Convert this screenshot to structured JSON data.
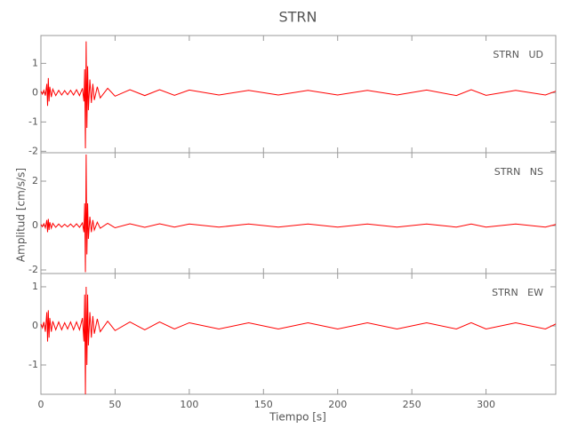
{
  "title": "STRN",
  "xlabel": "Tiempo [s]",
  "ylabel": "Amplitud [cm/s/s]",
  "chart_data": [
    {
      "type": "line",
      "label": "STRN   UD",
      "x": [
        0,
        1,
        2,
        3,
        4,
        4.5,
        5,
        5.5,
        6,
        7,
        8,
        10,
        12,
        14,
        16,
        18,
        20,
        22,
        24,
        26,
        28,
        29,
        29.5,
        30,
        30.5,
        31,
        31.5,
        32,
        33,
        34,
        35,
        36,
        38,
        40,
        45,
        50,
        60,
        70,
        80,
        90,
        100,
        120,
        140,
        160,
        180,
        200,
        220,
        240,
        260,
        280,
        290,
        300,
        320,
        340,
        347
      ],
      "series": [
        {
          "color": "#ff0000",
          "values": [
            0.05,
            -0.05,
            0.08,
            -0.1,
            0.3,
            -0.45,
            0.5,
            -0.3,
            0.2,
            -0.15,
            0.12,
            -0.1,
            0.08,
            -0.08,
            0.07,
            -0.07,
            0.08,
            -0.08,
            0.1,
            -0.1,
            0.15,
            -0.3,
            0.8,
            -1.9,
            1.75,
            -1.2,
            0.9,
            -0.6,
            0.45,
            -0.35,
            0.3,
            -0.25,
            0.2,
            -0.18,
            0.15,
            -0.12,
            0.1,
            -0.1,
            0.1,
            -0.09,
            0.09,
            -0.08,
            0.08,
            -0.08,
            0.08,
            -0.08,
            0.08,
            -0.08,
            0.09,
            -0.1,
            0.1,
            -0.09,
            0.08,
            -0.08,
            0.05
          ]
        }
      ],
      "xlim": [
        0,
        347
      ],
      "xticks": [
        0,
        50,
        100,
        150,
        200,
        250,
        300
      ],
      "ylim": [
        -2.05,
        1.95
      ],
      "yticks": [
        -2,
        -1,
        0,
        1
      ]
    },
    {
      "type": "line",
      "label": "STRN   NS",
      "x": [
        0,
        1,
        2,
        3,
        4,
        4.5,
        5,
        5.5,
        6,
        7,
        8,
        10,
        12,
        14,
        16,
        18,
        20,
        22,
        24,
        26,
        28,
        29,
        29.5,
        30,
        30.5,
        31,
        31.5,
        32,
        33,
        34,
        35,
        36,
        38,
        40,
        45,
        50,
        60,
        70,
        80,
        90,
        100,
        120,
        140,
        160,
        180,
        200,
        220,
        240,
        260,
        280,
        290,
        300,
        320,
        340,
        347
      ],
      "series": [
        {
          "color": "#ff0000",
          "values": [
            0.05,
            -0.05,
            0.08,
            -0.1,
            0.25,
            -0.3,
            0.3,
            -0.2,
            0.15,
            -0.12,
            0.1,
            -0.08,
            0.07,
            -0.07,
            0.06,
            -0.06,
            0.07,
            -0.07,
            0.08,
            -0.08,
            0.12,
            -0.3,
            1.0,
            -2.1,
            3.2,
            -1.3,
            1.0,
            -0.6,
            0.4,
            -0.3,
            0.25,
            -0.2,
            0.15,
            -0.12,
            0.1,
            -0.1,
            0.08,
            -0.08,
            0.08,
            -0.07,
            0.07,
            -0.07,
            0.07,
            -0.07,
            0.07,
            -0.07,
            0.07,
            -0.07,
            0.07,
            -0.07,
            0.07,
            -0.07,
            0.07,
            -0.07,
            0.05
          ]
        }
      ],
      "xlim": [
        0,
        347
      ],
      "xticks": [
        0,
        50,
        100,
        150,
        200,
        250,
        300
      ],
      "ylim": [
        -2.16,
        3.28
      ],
      "yticks": [
        -2,
        0,
        2
      ]
    },
    {
      "type": "line",
      "label": "STRN   EW",
      "x": [
        0,
        1,
        2,
        3,
        4,
        4.5,
        5,
        5.5,
        6,
        7,
        8,
        10,
        12,
        14,
        16,
        18,
        20,
        22,
        24,
        26,
        28,
        29,
        29.5,
        30,
        30.5,
        31,
        31.5,
        32,
        33,
        34,
        35,
        36,
        38,
        40,
        45,
        50,
        60,
        70,
        80,
        90,
        100,
        120,
        140,
        160,
        180,
        200,
        220,
        240,
        260,
        280,
        290,
        300,
        320,
        340,
        347
      ],
      "series": [
        {
          "color": "#ff0000",
          "values": [
            0.05,
            -0.05,
            0.1,
            -0.15,
            0.35,
            -0.4,
            0.4,
            -0.3,
            0.2,
            -0.15,
            0.12,
            -0.1,
            0.1,
            -0.1,
            0.08,
            -0.08,
            0.1,
            -0.1,
            0.1,
            -0.1,
            0.2,
            -0.4,
            0.8,
            -1.75,
            1.0,
            -1.0,
            0.8,
            -0.5,
            0.35,
            -0.3,
            0.25,
            -0.2,
            0.18,
            -0.15,
            0.12,
            -0.12,
            0.1,
            -0.1,
            0.1,
            -0.08,
            0.08,
            -0.08,
            0.08,
            -0.08,
            0.08,
            -0.08,
            0.08,
            -0.08,
            0.08,
            -0.08,
            0.08,
            -0.08,
            0.08,
            -0.08,
            0.05
          ]
        }
      ],
      "xlim": [
        0,
        347
      ],
      "xticks": [
        0,
        50,
        100,
        150,
        200,
        250,
        300
      ],
      "ylim": [
        -1.75,
        1.34
      ],
      "yticks": [
        -1,
        0,
        1
      ]
    }
  ]
}
